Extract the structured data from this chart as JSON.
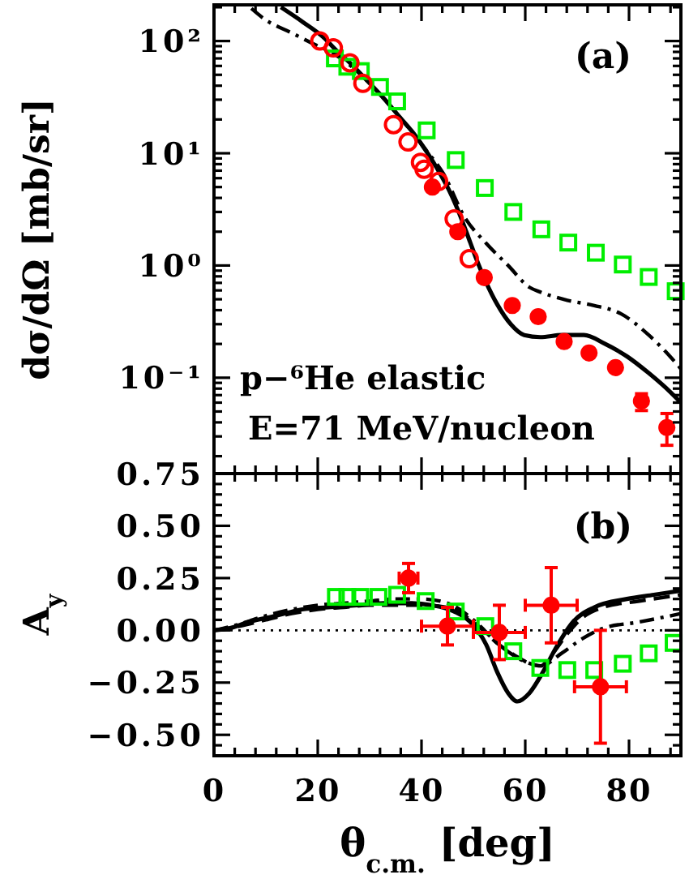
{
  "chart_data": [
    {
      "type": "scatter",
      "ylabel": "dσ/dΩ [mb/sr]",
      "annotations": [
        "(a)",
        "p−⁶He elastic",
        "E=71 MeV/nucleon"
      ],
      "log": "y",
      "tick_labels": "y",
      "xlim": [
        0,
        90
      ],
      "xticks": [
        0,
        20,
        40,
        60,
        80,
        {
          "value": 4,
          "label": null
        },
        {
          "value": 8,
          "label": null
        },
        {
          "value": 12,
          "label": null
        },
        {
          "value": 16,
          "label": null
        },
        {
          "value": 24,
          "label": null
        },
        {
          "value": 28,
          "label": null
        },
        {
          "value": 32,
          "label": null
        },
        {
          "value": 36,
          "label": null
        },
        {
          "value": 44,
          "label": null
        },
        {
          "value": 48,
          "label": null
        },
        {
          "value": 52,
          "label": null
        },
        {
          "value": 56,
          "label": null
        },
        {
          "value": 64,
          "label": null
        },
        {
          "value": 68,
          "label": null
        },
        {
          "value": 72,
          "label": null
        },
        {
          "value": 76,
          "label": null
        },
        {
          "value": 84,
          "label": null
        },
        {
          "value": 88,
          "label": null
        }
      ],
      "ylim": [
        0.014,
        210
      ],
      "yticks": [
        {
          "value": 100,
          "label": "10²"
        },
        {
          "value": 10,
          "label": "10¹"
        },
        {
          "value": 1,
          "label": "10⁰"
        },
        {
          "value": 0.1,
          "label": "10⁻¹"
        },
        {
          "value": 0.02,
          "label": null
        },
        {
          "value": 0.03,
          "label": null
        },
        {
          "value": 0.04,
          "label": null
        },
        {
          "value": 0.05,
          "label": null
        },
        {
          "value": 0.06,
          "label": null
        },
        {
          "value": 0.07,
          "label": null
        },
        {
          "value": 0.08,
          "label": null
        },
        {
          "value": 0.09,
          "label": null
        },
        {
          "value": 0.2,
          "label": null
        },
        {
          "value": 0.3,
          "label": null
        },
        {
          "value": 0.4,
          "label": null
        },
        {
          "value": 0.5,
          "label": null
        },
        {
          "value": 0.6,
          "label": null
        },
        {
          "value": 0.7,
          "label": null
        },
        {
          "value": 0.8,
          "label": null
        },
        {
          "value": 0.9,
          "label": null
        },
        {
          "value": 2,
          "label": null
        },
        {
          "value": 3,
          "label": null
        },
        {
          "value": 4,
          "label": null
        },
        {
          "value": 5,
          "label": null
        },
        {
          "value": 6,
          "label": null
        },
        {
          "value": 7,
          "label": null
        },
        {
          "value": 8,
          "label": null
        },
        {
          "value": 9,
          "label": null
        },
        {
          "value": 20,
          "label": null
        },
        {
          "value": 30,
          "label": null
        },
        {
          "value": 40,
          "label": null
        },
        {
          "value": 50,
          "label": null
        },
        {
          "value": 60,
          "label": null
        },
        {
          "value": 70,
          "label": null
        },
        {
          "value": 80,
          "label": null
        },
        {
          "value": 90,
          "label": null
        },
        {
          "value": 200,
          "label": null
        }
      ],
      "series": [
        {
          "type": "line",
          "color": "#000000",
          "line_style": "solid",
          "x": [
            12.9,
            17.1,
            21.3,
            23.3,
            26.5,
            29.6,
            32.7,
            35.8,
            38.5,
            41.0,
            43.1,
            45.2,
            47.3,
            49.4,
            50.4,
            52.5,
            54.6,
            57.2,
            59.8,
            62.9,
            67.1,
            71.3,
            75.4,
            79.6,
            83.8,
            87.9,
            90
          ],
          "values": [
            200,
            148,
            106,
            85,
            62,
            44,
            31,
            21,
            15,
            10.3,
            7.2,
            4.8,
            2.9,
            1.6,
            1.2,
            0.7,
            0.45,
            0.3,
            0.24,
            0.23,
            0.24,
            0.24,
            0.2,
            0.155,
            0.11,
            0.075,
            0.06
          ]
        },
        {
          "type": "line",
          "color": "#000000",
          "line_style": "dashdot",
          "x": [
            7.2,
            9.8,
            15,
            19.2,
            23.3,
            29.6,
            33.8,
            37.9,
            41,
            44.2,
            48.3,
            52.5,
            56.7,
            60.8,
            62.9,
            68.1,
            73.3,
            78.5,
            83.8,
            87.9,
            90
          ],
          "values": [
            195,
            156,
            118,
            94,
            76,
            44,
            27,
            16,
            10.5,
            6.6,
            2.7,
            1.57,
            1.0,
            0.64,
            0.58,
            0.49,
            0.44,
            0.37,
            0.24,
            0.155,
            0.12
          ]
        },
        {
          "color": "#00ee00",
          "marker": "square-open",
          "x": [
            23.3,
            25.7,
            28.3,
            32.0,
            35.3,
            41.0,
            46.6,
            52.2,
            57.7,
            63.1,
            68.3,
            73.6,
            78.8,
            83.8,
            89.0
          ],
          "values": [
            70,
            59,
            54,
            39,
            29,
            16,
            8.7,
            4.9,
            3.0,
            2.1,
            1.6,
            1.3,
            1.02,
            0.79,
            0.59
          ]
        },
        {
          "color": "#ff0000",
          "marker": "circle-open",
          "x": [
            20.4,
            23.0,
            26.2,
            28.7,
            34.6,
            37.4,
            39.8,
            40.5,
            43.3,
            46.3,
            49.2
          ],
          "values": [
            100,
            87,
            64,
            42,
            18,
            12.6,
            8.3,
            7.2,
            5.6,
            2.6,
            1.15
          ]
        },
        {
          "color": "#ff0000",
          "marker": "circle",
          "x": [
            42.1,
            47.0,
            52.1,
            57.5,
            62.5,
            67.5,
            72.3,
            77.4,
            82.4,
            87.3
          ],
          "values": [
            5.0,
            2.0,
            0.78,
            0.44,
            0.35,
            0.21,
            0.166,
            0.123,
            0.062,
            0.036
          ],
          "errors": [
            null,
            null,
            null,
            null,
            null,
            null,
            null,
            null,
            [
              0.051,
              0.072
            ],
            [
              0.025,
              0.048
            ]
          ]
        }
      ]
    },
    {
      "type": "scatter",
      "xlabel": "θ$_{c.m.}$ [deg]",
      "ylabel": "A$_{y}$",
      "annotations": [
        "(b)"
      ],
      "xlim": [
        0,
        90
      ],
      "xticks": [
        0,
        20,
        40,
        60,
        80,
        {
          "value": 4,
          "label": null
        },
        {
          "value": 8,
          "label": null
        },
        {
          "value": 12,
          "label": null
        },
        {
          "value": 16,
          "label": null
        },
        {
          "value": 24,
          "label": null
        },
        {
          "value": 28,
          "label": null
        },
        {
          "value": 32,
          "label": null
        },
        {
          "value": 36,
          "label": null
        },
        {
          "value": 44,
          "label": null
        },
        {
          "value": 48,
          "label": null
        },
        {
          "value": 52,
          "label": null
        },
        {
          "value": 56,
          "label": null
        },
        {
          "value": 64,
          "label": null
        },
        {
          "value": 68,
          "label": null
        },
        {
          "value": 72,
          "label": null
        },
        {
          "value": 76,
          "label": null
        },
        {
          "value": 84,
          "label": null
        },
        {
          "value": 88,
          "label": null
        }
      ],
      "ylim": [
        -0.6,
        0.75
      ],
      "yticks": [
        0.75,
        {
          "value": 0.5,
          "label": "0.50"
        },
        0.25,
        {
          "value": 0,
          "label": "0.00"
        },
        {
          "value": -0.25,
          "label": "−0.25"
        },
        {
          "value": -0.5,
          "label": "−0.50"
        },
        {
          "value": -0.55,
          "label": null
        },
        {
          "value": -0.45,
          "label": null
        },
        {
          "value": -0.4,
          "label": null
        },
        {
          "value": -0.35,
          "label": null
        },
        {
          "value": -0.3,
          "label": null
        },
        {
          "value": -0.2,
          "label": null
        },
        {
          "value": -0.15,
          "label": null
        },
        {
          "value": -0.1,
          "label": null
        },
        {
          "value": -0.05,
          "label": null
        },
        {
          "value": 0.05,
          "label": null
        },
        {
          "value": 0.1,
          "label": null
        },
        {
          "value": 0.15,
          "label": null
        },
        {
          "value": 0.2,
          "label": null
        },
        {
          "value": 0.3,
          "label": null
        },
        {
          "value": 0.35,
          "label": null
        },
        {
          "value": 0.4,
          "label": null
        },
        {
          "value": 0.45,
          "label": null
        },
        {
          "value": 0.55,
          "label": null
        },
        {
          "value": 0.6,
          "label": null
        },
        {
          "value": 0.65,
          "label": null
        },
        {
          "value": 0.7,
          "label": null
        }
      ],
      "ref_lines": [
        {
          "axis": "y",
          "value": 0,
          "line_style": "dotted",
          "color": "#000000"
        }
      ],
      "series": [
        {
          "type": "line",
          "color": "#000000",
          "line_style": "solid",
          "x": [
            0,
            3,
            6.7,
            12,
            17,
            22,
            27.5,
            32.7,
            38,
            42,
            46.3,
            49.4,
            52.5,
            54.6,
            56.7,
            58.5,
            60.8,
            63.4,
            66,
            69.2,
            73.3,
            79.6,
            84.8,
            90
          ],
          "values": [
            0,
            0.01,
            0.04,
            0.07,
            0.1,
            0.11,
            0.12,
            0.13,
            0.13,
            0.12,
            0.09,
            0.04,
            -0.07,
            -0.2,
            -0.3,
            -0.34,
            -0.3,
            -0.2,
            -0.08,
            0.04,
            0.11,
            0.15,
            0.17,
            0.19
          ]
        },
        {
          "type": "line",
          "color": "#000000",
          "line_style": "dashed",
          "x": [
            0,
            5,
            10,
            15,
            20,
            25,
            30,
            35,
            40,
            45,
            50,
            55,
            58,
            61,
            63,
            65,
            68,
            71,
            75,
            82,
            90
          ],
          "values": [
            0,
            0.02,
            0.05,
            0.08,
            0.1,
            0.11,
            0.12,
            0.12,
            0.12,
            0.11,
            0.04,
            -0.07,
            -0.12,
            -0.16,
            -0.17,
            -0.12,
            -0.02,
            0.06,
            0.11,
            0.14,
            0.17
          ]
        },
        {
          "type": "line",
          "color": "#000000",
          "line_style": "dashdot",
          "x": [
            0,
            5,
            10,
            15,
            20,
            25,
            30,
            35,
            40,
            45,
            50,
            55,
            60,
            63,
            67,
            71,
            75,
            82,
            90
          ],
          "values": [
            0,
            0.03,
            0.07,
            0.1,
            0.12,
            0.13,
            0.14,
            0.15,
            0.15,
            0.13,
            0.05,
            -0.07,
            -0.15,
            -0.17,
            -0.11,
            -0.04,
            0.01,
            0.04,
            0.08
          ]
        },
        {
          "color": "#00ee00",
          "marker": "square-open",
          "x": [
            23.5,
            25.7,
            28.2,
            31.7,
            35.3,
            40.8,
            46.6,
            52.3,
            57.7,
            62.9,
            68.1,
            73.3,
            78.8,
            83.8,
            88.6
          ],
          "values": [
            0.16,
            0.16,
            0.16,
            0.16,
            0.17,
            0.14,
            0.09,
            0.02,
            -0.1,
            -0.18,
            -0.19,
            -0.19,
            -0.16,
            -0.11,
            -0.06
          ]
        },
        {
          "color": "#ff0000",
          "marker": "circle",
          "x": [
            37.5,
            45,
            55,
            65,
            74.5
          ],
          "values": [
            0.25,
            0.02,
            -0.01,
            0.12,
            -0.27
          ],
          "errors": [
            0.07,
            0.09,
            0.13,
            0.18,
            0.27
          ],
          "xerrors": [
            1.8,
            5,
            5,
            5,
            5
          ]
        }
      ]
    }
  ]
}
